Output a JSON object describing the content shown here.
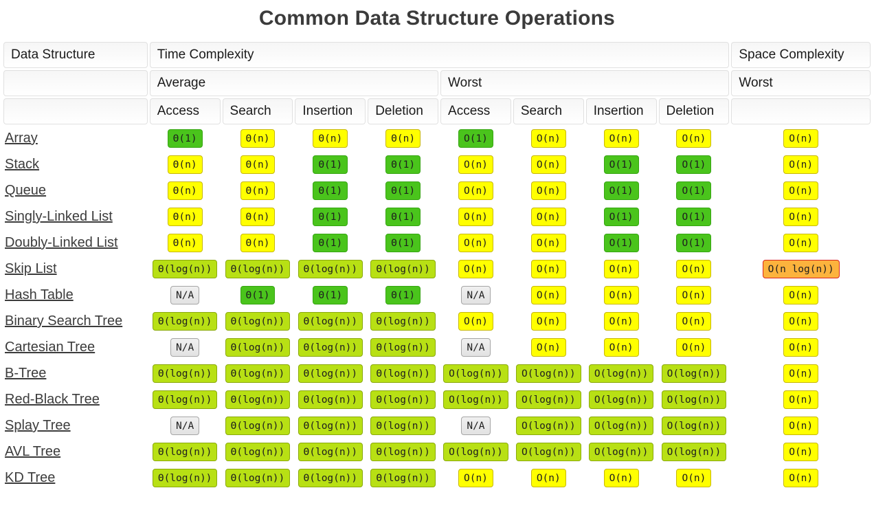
{
  "page": {
    "title": "Common Data Structure Operations"
  },
  "colors": {
    "excellent_green": "#4ac41c",
    "good_yellow_green": "#b8e014",
    "fair_yellow": "#ffff00",
    "bad_orange": "#fcb33d",
    "bad_border_red": "#d9251d",
    "na_gray": "#e9e9e9",
    "title_text": "#3b3b3b",
    "link_text": "#3c3c3c"
  },
  "table": {
    "headers": {
      "data_structure": "Data Structure",
      "time_complexity": "Time Complexity",
      "space_complexity": "Space Complexity",
      "average": "Average",
      "worst": "Worst",
      "space_worst": "Worst",
      "operations_average": [
        "Access",
        "Search",
        "Insertion",
        "Deletion"
      ],
      "operations_worst": [
        "Access",
        "Search",
        "Insertion",
        "Deletion"
      ]
    },
    "rows": [
      {
        "name": "Array",
        "cells": [
          {
            "v": "Θ(1)",
            "l": "excellent"
          },
          {
            "v": "Θ(n)",
            "l": "fair"
          },
          {
            "v": "Θ(n)",
            "l": "fair"
          },
          {
            "v": "Θ(n)",
            "l": "fair"
          },
          {
            "v": "O(1)",
            "l": "excellent"
          },
          {
            "v": "O(n)",
            "l": "fair"
          },
          {
            "v": "O(n)",
            "l": "fair"
          },
          {
            "v": "O(n)",
            "l": "fair"
          },
          {
            "v": "O(n)",
            "l": "fair"
          }
        ]
      },
      {
        "name": "Stack",
        "cells": [
          {
            "v": "Θ(n)",
            "l": "fair"
          },
          {
            "v": "Θ(n)",
            "l": "fair"
          },
          {
            "v": "Θ(1)",
            "l": "excellent"
          },
          {
            "v": "Θ(1)",
            "l": "excellent"
          },
          {
            "v": "O(n)",
            "l": "fair"
          },
          {
            "v": "O(n)",
            "l": "fair"
          },
          {
            "v": "O(1)",
            "l": "excellent"
          },
          {
            "v": "O(1)",
            "l": "excellent"
          },
          {
            "v": "O(n)",
            "l": "fair"
          }
        ]
      },
      {
        "name": "Queue",
        "cells": [
          {
            "v": "Θ(n)",
            "l": "fair"
          },
          {
            "v": "Θ(n)",
            "l": "fair"
          },
          {
            "v": "Θ(1)",
            "l": "excellent"
          },
          {
            "v": "Θ(1)",
            "l": "excellent"
          },
          {
            "v": "O(n)",
            "l": "fair"
          },
          {
            "v": "O(n)",
            "l": "fair"
          },
          {
            "v": "O(1)",
            "l": "excellent"
          },
          {
            "v": "O(1)",
            "l": "excellent"
          },
          {
            "v": "O(n)",
            "l": "fair"
          }
        ]
      },
      {
        "name": "Singly-Linked List",
        "cells": [
          {
            "v": "Θ(n)",
            "l": "fair"
          },
          {
            "v": "Θ(n)",
            "l": "fair"
          },
          {
            "v": "Θ(1)",
            "l": "excellent"
          },
          {
            "v": "Θ(1)",
            "l": "excellent"
          },
          {
            "v": "O(n)",
            "l": "fair"
          },
          {
            "v": "O(n)",
            "l": "fair"
          },
          {
            "v": "O(1)",
            "l": "excellent"
          },
          {
            "v": "O(1)",
            "l": "excellent"
          },
          {
            "v": "O(n)",
            "l": "fair"
          }
        ]
      },
      {
        "name": "Doubly-Linked List",
        "cells": [
          {
            "v": "Θ(n)",
            "l": "fair"
          },
          {
            "v": "Θ(n)",
            "l": "fair"
          },
          {
            "v": "Θ(1)",
            "l": "excellent"
          },
          {
            "v": "Θ(1)",
            "l": "excellent"
          },
          {
            "v": "O(n)",
            "l": "fair"
          },
          {
            "v": "O(n)",
            "l": "fair"
          },
          {
            "v": "O(1)",
            "l": "excellent"
          },
          {
            "v": "O(1)",
            "l": "excellent"
          },
          {
            "v": "O(n)",
            "l": "fair"
          }
        ]
      },
      {
        "name": "Skip List",
        "cells": [
          {
            "v": "Θ(log(n))",
            "l": "good"
          },
          {
            "v": "Θ(log(n))",
            "l": "good"
          },
          {
            "v": "Θ(log(n))",
            "l": "good"
          },
          {
            "v": "Θ(log(n))",
            "l": "good"
          },
          {
            "v": "O(n)",
            "l": "fair"
          },
          {
            "v": "O(n)",
            "l": "fair"
          },
          {
            "v": "O(n)",
            "l": "fair"
          },
          {
            "v": "O(n)",
            "l": "fair"
          },
          {
            "v": "O(n log(n))",
            "l": "bad"
          }
        ]
      },
      {
        "name": "Hash Table",
        "cells": [
          {
            "v": "N/A",
            "l": "na"
          },
          {
            "v": "Θ(1)",
            "l": "excellent"
          },
          {
            "v": "Θ(1)",
            "l": "excellent"
          },
          {
            "v": "Θ(1)",
            "l": "excellent"
          },
          {
            "v": "N/A",
            "l": "na"
          },
          {
            "v": "O(n)",
            "l": "fair"
          },
          {
            "v": "O(n)",
            "l": "fair"
          },
          {
            "v": "O(n)",
            "l": "fair"
          },
          {
            "v": "O(n)",
            "l": "fair"
          }
        ]
      },
      {
        "name": "Binary Search Tree",
        "cells": [
          {
            "v": "Θ(log(n))",
            "l": "good"
          },
          {
            "v": "Θ(log(n))",
            "l": "good"
          },
          {
            "v": "Θ(log(n))",
            "l": "good"
          },
          {
            "v": "Θ(log(n))",
            "l": "good"
          },
          {
            "v": "O(n)",
            "l": "fair"
          },
          {
            "v": "O(n)",
            "l": "fair"
          },
          {
            "v": "O(n)",
            "l": "fair"
          },
          {
            "v": "O(n)",
            "l": "fair"
          },
          {
            "v": "O(n)",
            "l": "fair"
          }
        ]
      },
      {
        "name": "Cartesian Tree",
        "cells": [
          {
            "v": "N/A",
            "l": "na"
          },
          {
            "v": "Θ(log(n))",
            "l": "good"
          },
          {
            "v": "Θ(log(n))",
            "l": "good"
          },
          {
            "v": "Θ(log(n))",
            "l": "good"
          },
          {
            "v": "N/A",
            "l": "na"
          },
          {
            "v": "O(n)",
            "l": "fair"
          },
          {
            "v": "O(n)",
            "l": "fair"
          },
          {
            "v": "O(n)",
            "l": "fair"
          },
          {
            "v": "O(n)",
            "l": "fair"
          }
        ]
      },
      {
        "name": "B-Tree",
        "cells": [
          {
            "v": "Θ(log(n))",
            "l": "good"
          },
          {
            "v": "Θ(log(n))",
            "l": "good"
          },
          {
            "v": "Θ(log(n))",
            "l": "good"
          },
          {
            "v": "Θ(log(n))",
            "l": "good"
          },
          {
            "v": "O(log(n))",
            "l": "good"
          },
          {
            "v": "O(log(n))",
            "l": "good"
          },
          {
            "v": "O(log(n))",
            "l": "good"
          },
          {
            "v": "O(log(n))",
            "l": "good"
          },
          {
            "v": "O(n)",
            "l": "fair"
          }
        ]
      },
      {
        "name": "Red-Black Tree",
        "cells": [
          {
            "v": "Θ(log(n))",
            "l": "good"
          },
          {
            "v": "Θ(log(n))",
            "l": "good"
          },
          {
            "v": "Θ(log(n))",
            "l": "good"
          },
          {
            "v": "Θ(log(n))",
            "l": "good"
          },
          {
            "v": "O(log(n))",
            "l": "good"
          },
          {
            "v": "O(log(n))",
            "l": "good"
          },
          {
            "v": "O(log(n))",
            "l": "good"
          },
          {
            "v": "O(log(n))",
            "l": "good"
          },
          {
            "v": "O(n)",
            "l": "fair"
          }
        ]
      },
      {
        "name": "Splay Tree",
        "cells": [
          {
            "v": "N/A",
            "l": "na"
          },
          {
            "v": "Θ(log(n))",
            "l": "good"
          },
          {
            "v": "Θ(log(n))",
            "l": "good"
          },
          {
            "v": "Θ(log(n))",
            "l": "good"
          },
          {
            "v": "N/A",
            "l": "na"
          },
          {
            "v": "O(log(n))",
            "l": "good"
          },
          {
            "v": "O(log(n))",
            "l": "good"
          },
          {
            "v": "O(log(n))",
            "l": "good"
          },
          {
            "v": "O(n)",
            "l": "fair"
          }
        ]
      },
      {
        "name": "AVL Tree",
        "cells": [
          {
            "v": "Θ(log(n))",
            "l": "good"
          },
          {
            "v": "Θ(log(n))",
            "l": "good"
          },
          {
            "v": "Θ(log(n))",
            "l": "good"
          },
          {
            "v": "Θ(log(n))",
            "l": "good"
          },
          {
            "v": "O(log(n))",
            "l": "good"
          },
          {
            "v": "O(log(n))",
            "l": "good"
          },
          {
            "v": "O(log(n))",
            "l": "good"
          },
          {
            "v": "O(log(n))",
            "l": "good"
          },
          {
            "v": "O(n)",
            "l": "fair"
          }
        ]
      },
      {
        "name": "KD Tree",
        "cells": [
          {
            "v": "Θ(log(n))",
            "l": "good"
          },
          {
            "v": "Θ(log(n))",
            "l": "good"
          },
          {
            "v": "Θ(log(n))",
            "l": "good"
          },
          {
            "v": "Θ(log(n))",
            "l": "good"
          },
          {
            "v": "O(n)",
            "l": "fair"
          },
          {
            "v": "O(n)",
            "l": "fair"
          },
          {
            "v": "O(n)",
            "l": "fair"
          },
          {
            "v": "O(n)",
            "l": "fair"
          },
          {
            "v": "O(n)",
            "l": "fair"
          }
        ]
      }
    ]
  }
}
